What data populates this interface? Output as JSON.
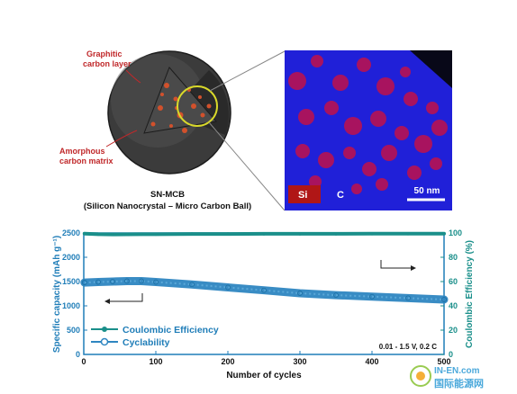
{
  "schematic": {
    "label_graphitic": "Graphitic\ncarbon layer",
    "label_amorphous": "Amorphous\ncarbon matrix",
    "caption_title": "SN-MCB",
    "caption_sub": "(Silicon Nanocrystal – Micro Carbon Ball)"
  },
  "eds_map": {
    "label_si": "Si",
    "label_c": "C",
    "scale_bar": "50 nm"
  },
  "chart_data": {
    "type": "line",
    "xlabel": "Number of cycles",
    "ylabel_left": "Specific capacity (mAh g⁻¹)",
    "ylabel_right": "Coulombic Efficiency (%)",
    "xlim": [
      0,
      500
    ],
    "ylim_left": [
      0,
      2500
    ],
    "ylim_right": [
      0,
      100
    ],
    "x_ticks": [
      "0",
      "100",
      "200",
      "300",
      "400",
      "500"
    ],
    "y_left_ticks": [
      "0",
      "500",
      "1000",
      "1500",
      "2000",
      "2500"
    ],
    "y_right_ticks": [
      "0",
      "20",
      "40",
      "60",
      "80",
      "100"
    ],
    "annotation": "0.01 - 1.5 V, 0.2 C",
    "legend_position": "bottom-left",
    "series": [
      {
        "name": "Coulombic Efficiency",
        "axis": "right",
        "color": "#1a8f8a",
        "marker": "filled-circle",
        "x": [
          1,
          20,
          40,
          60,
          80,
          100,
          150,
          200,
          250,
          300,
          350,
          400,
          450,
          500
        ],
        "values": [
          99.5,
          99.0,
          98.8,
          98.9,
          99.0,
          99.0,
          99.2,
          99.2,
          99.3,
          99.3,
          99.3,
          99.4,
          99.4,
          99.4
        ]
      },
      {
        "name": "Cyclability",
        "axis": "left",
        "color": "#2e86c1",
        "marker": "open-circle",
        "x": [
          1,
          20,
          40,
          60,
          80,
          100,
          150,
          200,
          250,
          300,
          350,
          400,
          450,
          500
        ],
        "values": [
          1480,
          1490,
          1500,
          1510,
          1510,
          1490,
          1440,
          1380,
          1320,
          1260,
          1220,
          1190,
          1160,
          1130
        ]
      }
    ]
  },
  "watermark": {
    "text_top": "IN-EN.com",
    "text_bottom": "国际能源网"
  }
}
